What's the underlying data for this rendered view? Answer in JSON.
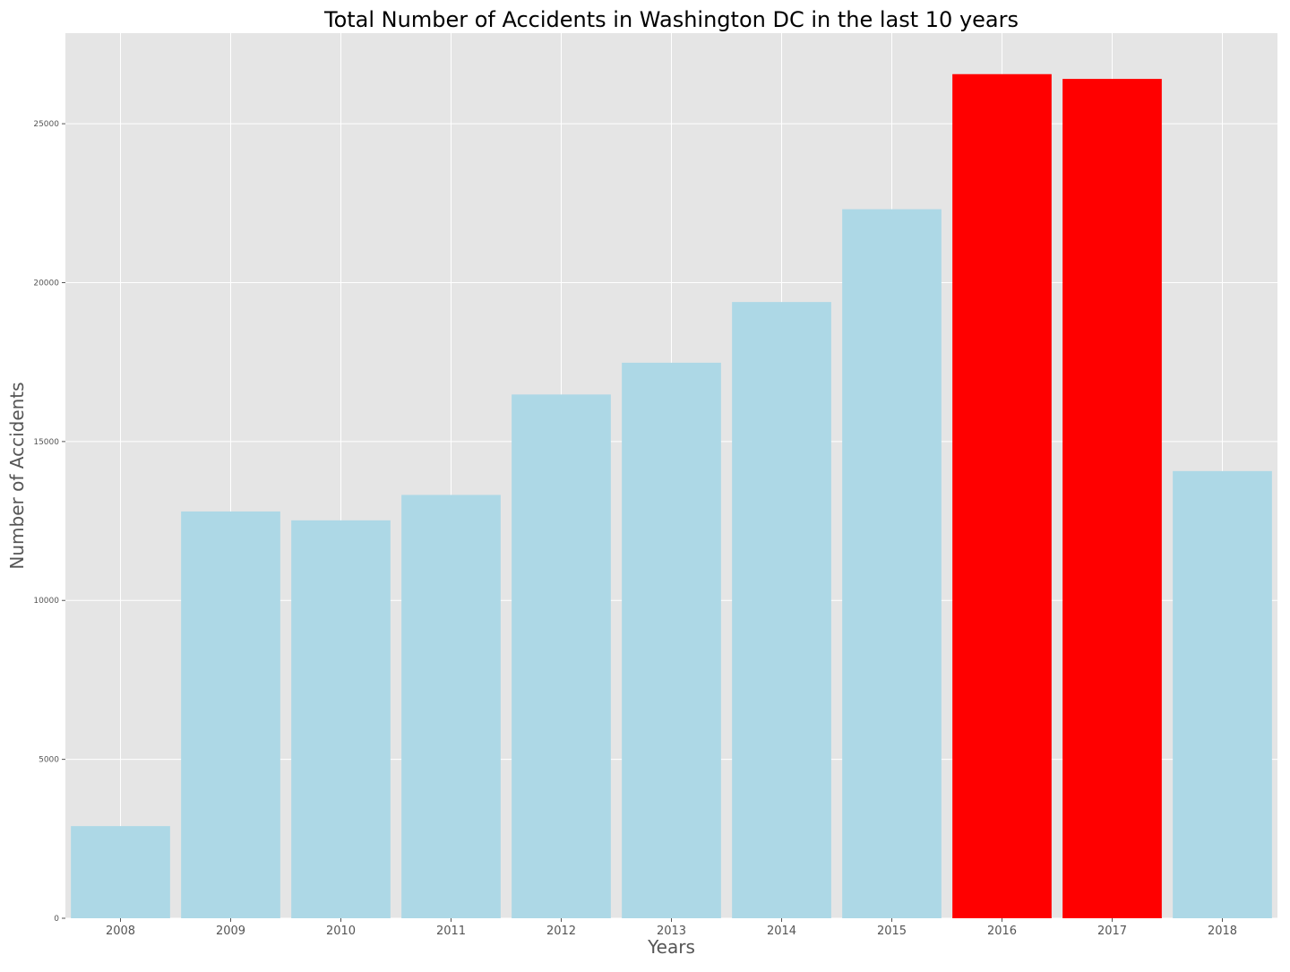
{
  "chart_data": {
    "type": "bar",
    "title": "Total Number of Accidents in Washington DC in the last 10 years",
    "xlabel": "Years",
    "ylabel": "Number of Accidents",
    "categories": [
      "2008",
      "2009",
      "2010",
      "2011",
      "2012",
      "2013",
      "2014",
      "2015",
      "2016",
      "2017",
      "2018"
    ],
    "values": [
      2900,
      12800,
      12520,
      13320,
      16480,
      17480,
      19390,
      22310,
      26560,
      26410,
      14070
    ],
    "bar_colors": [
      "#add8e6",
      "#add8e6",
      "#add8e6",
      "#add8e6",
      "#add8e6",
      "#add8e6",
      "#add8e6",
      "#add8e6",
      "#ff0000",
      "#ff0000",
      "#add8e6"
    ],
    "ylim": [
      0,
      27850
    ],
    "yticks": [
      0,
      5000,
      10000,
      15000,
      20000,
      25000
    ],
    "grid": true,
    "background_color": "#e5e5e5",
    "grid_color": "#ffffff"
  }
}
